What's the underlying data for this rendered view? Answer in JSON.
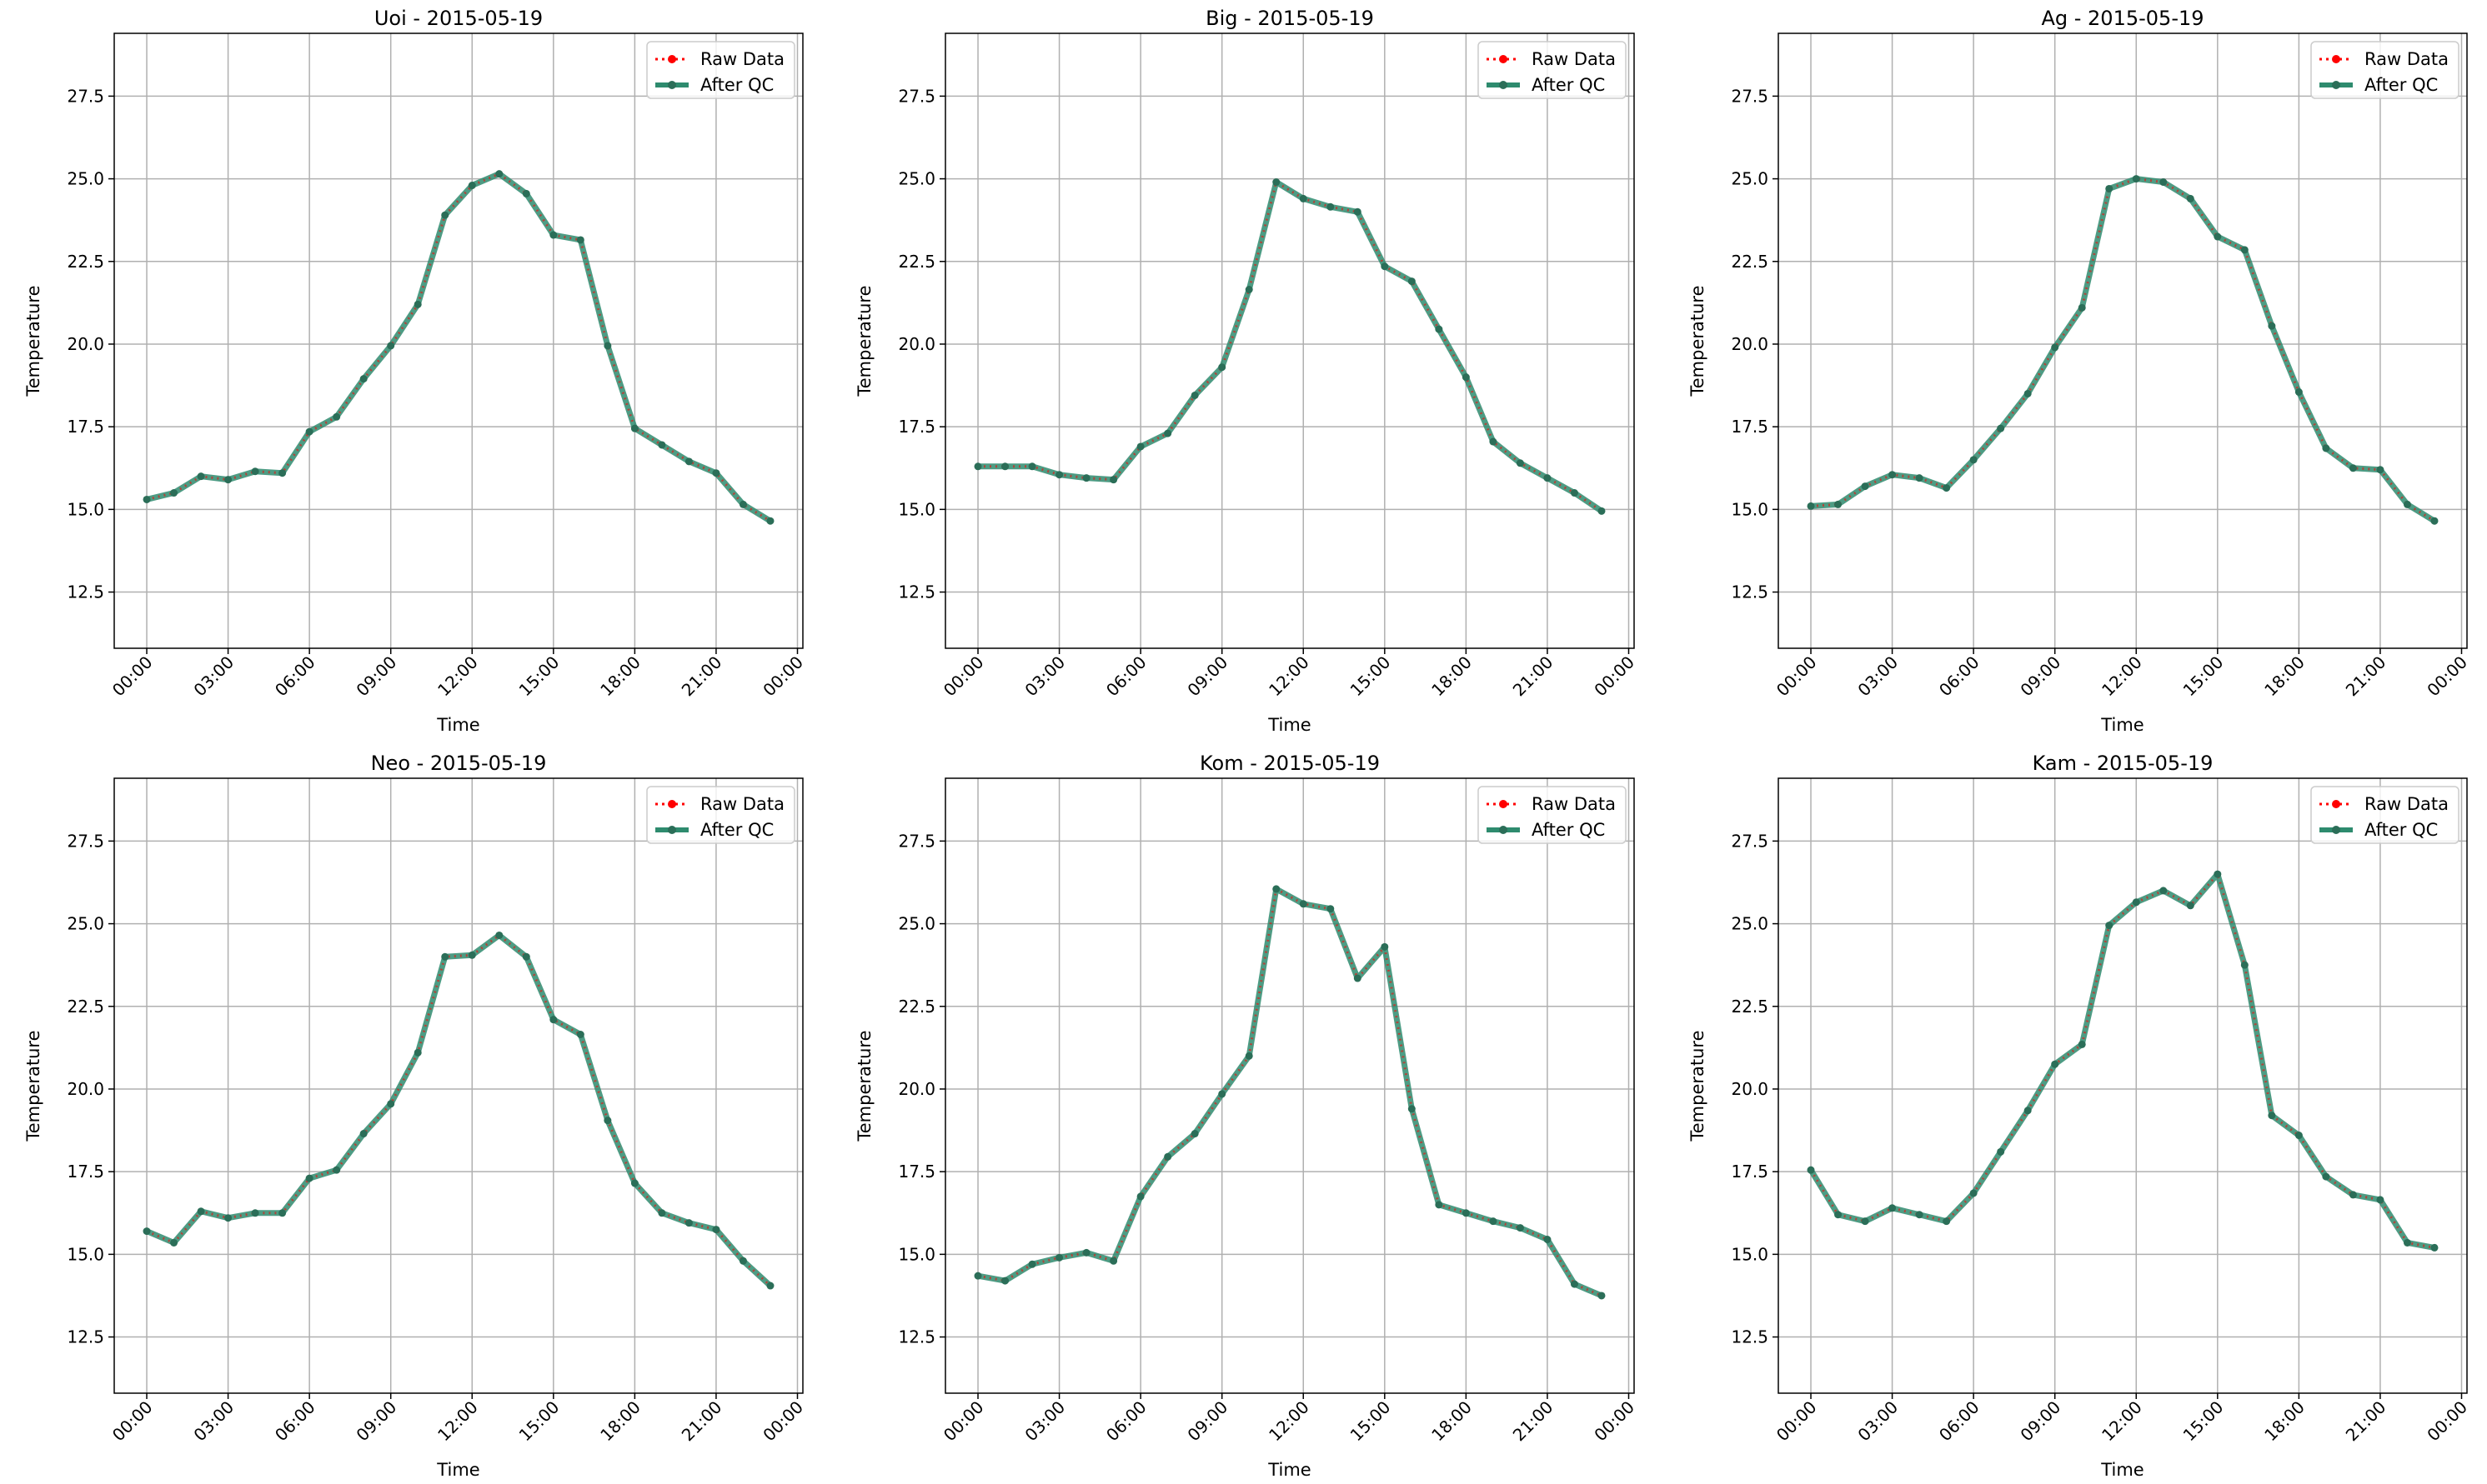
{
  "chart_data": [
    {
      "type": "line",
      "title": "Uoi - 2015-05-19",
      "xlabel": "Time",
      "ylabel": "Temperature",
      "ylim": [
        10.8,
        29.4
      ],
      "xlim_hours": [
        -1.2,
        24.2
      ],
      "xticks": [
        "00:00",
        "03:00",
        "06:00",
        "09:00",
        "12:00",
        "15:00",
        "18:00",
        "21:00",
        "00:00"
      ],
      "yticks": [
        "12.5",
        "15.0",
        "17.5",
        "20.0",
        "22.5",
        "25.0",
        "27.5"
      ],
      "grid": true,
      "legend": "top-right",
      "x_hours": [
        0,
        1,
        2,
        3,
        4,
        5,
        6,
        7,
        8,
        9,
        10,
        11,
        12,
        13,
        14,
        15,
        16,
        17,
        18,
        19,
        20,
        21,
        22,
        23
      ],
      "series": [
        {
          "name": "Raw Data",
          "values": [
            15.3,
            15.5,
            16.0,
            15.9,
            16.15,
            16.1,
            17.35,
            17.8,
            18.95,
            19.95,
            21.2,
            23.9,
            24.8,
            25.15,
            24.55,
            23.3,
            23.15,
            19.95,
            17.45,
            16.95,
            16.45,
            16.1,
            15.15,
            14.65
          ]
        },
        {
          "name": "After QC",
          "values": [
            15.3,
            15.5,
            16.0,
            15.9,
            16.15,
            16.1,
            17.35,
            17.8,
            18.95,
            19.95,
            21.2,
            23.9,
            24.8,
            25.15,
            24.55,
            23.3,
            23.15,
            19.95,
            17.45,
            16.95,
            16.45,
            16.1,
            15.15,
            14.65
          ]
        }
      ]
    },
    {
      "type": "line",
      "title": "Big - 2015-05-19",
      "xlabel": "Time",
      "ylabel": "Temperature",
      "ylim": [
        10.8,
        29.4
      ],
      "xlim_hours": [
        -1.2,
        24.2
      ],
      "xticks": [
        "00:00",
        "03:00",
        "06:00",
        "09:00",
        "12:00",
        "15:00",
        "18:00",
        "21:00",
        "00:00"
      ],
      "yticks": [
        "12.5",
        "15.0",
        "17.5",
        "20.0",
        "22.5",
        "25.0",
        "27.5"
      ],
      "grid": true,
      "legend": "top-right",
      "x_hours": [
        0,
        1,
        2,
        3,
        4,
        5,
        6,
        7,
        8,
        9,
        10,
        11,
        12,
        13,
        14,
        15,
        16,
        17,
        18,
        19,
        20,
        21,
        22,
        23
      ],
      "series": [
        {
          "name": "Raw Data",
          "values": [
            16.3,
            16.3,
            16.3,
            16.05,
            15.95,
            15.9,
            16.9,
            17.3,
            18.45,
            19.3,
            21.65,
            24.9,
            24.4,
            24.15,
            24.0,
            22.35,
            21.9,
            20.45,
            19.0,
            17.05,
            16.4,
            15.95,
            15.5,
            14.95
          ]
        },
        {
          "name": "After QC",
          "values": [
            16.3,
            16.3,
            16.3,
            16.05,
            15.95,
            15.9,
            16.9,
            17.3,
            18.45,
            19.3,
            21.65,
            24.9,
            24.4,
            24.15,
            24.0,
            22.35,
            21.9,
            20.45,
            19.0,
            17.05,
            16.4,
            15.95,
            15.5,
            14.95
          ]
        }
      ]
    },
    {
      "type": "line",
      "title": "Ag - 2015-05-19",
      "xlabel": "Time",
      "ylabel": "Temperature",
      "ylim": [
        10.8,
        29.4
      ],
      "xlim_hours": [
        -1.2,
        24.2
      ],
      "xticks": [
        "00:00",
        "03:00",
        "06:00",
        "09:00",
        "12:00",
        "15:00",
        "18:00",
        "21:00",
        "00:00"
      ],
      "yticks": [
        "12.5",
        "15.0",
        "17.5",
        "20.0",
        "22.5",
        "25.0",
        "27.5"
      ],
      "grid": true,
      "legend": "top-right",
      "x_hours": [
        0,
        1,
        2,
        3,
        4,
        5,
        6,
        7,
        8,
        9,
        10,
        11,
        12,
        13,
        14,
        15,
        16,
        17,
        18,
        19,
        20,
        21,
        22,
        23
      ],
      "series": [
        {
          "name": "Raw Data",
          "values": [
            15.1,
            15.15,
            15.7,
            16.05,
            15.95,
            15.65,
            16.5,
            17.45,
            18.5,
            19.9,
            21.1,
            24.7,
            25.0,
            24.9,
            24.4,
            23.25,
            22.85,
            20.55,
            18.55,
            16.85,
            16.25,
            16.2,
            15.15,
            14.65
          ]
        },
        {
          "name": "After QC",
          "values": [
            15.1,
            15.15,
            15.7,
            16.05,
            15.95,
            15.65,
            16.5,
            17.45,
            18.5,
            19.9,
            21.1,
            24.7,
            25.0,
            24.9,
            24.4,
            23.25,
            22.85,
            20.55,
            18.55,
            16.85,
            16.25,
            16.2,
            15.15,
            14.65
          ]
        }
      ]
    },
    {
      "type": "line",
      "title": "Neo - 2015-05-19",
      "xlabel": "Time",
      "ylabel": "Temperature",
      "ylim": [
        10.8,
        29.4
      ],
      "xlim_hours": [
        -1.2,
        24.2
      ],
      "xticks": [
        "00:00",
        "03:00",
        "06:00",
        "09:00",
        "12:00",
        "15:00",
        "18:00",
        "21:00",
        "00:00"
      ],
      "yticks": [
        "12.5",
        "15.0",
        "17.5",
        "20.0",
        "22.5",
        "25.0",
        "27.5"
      ],
      "grid": true,
      "legend": "top-right",
      "x_hours": [
        0,
        1,
        2,
        3,
        4,
        5,
        6,
        7,
        8,
        9,
        10,
        11,
        12,
        13,
        14,
        15,
        16,
        17,
        18,
        19,
        20,
        21,
        22,
        23
      ],
      "series": [
        {
          "name": "Raw Data",
          "values": [
            15.7,
            15.35,
            16.3,
            16.1,
            16.25,
            16.25,
            17.3,
            17.55,
            18.65,
            19.55,
            21.1,
            24.0,
            24.05,
            24.65,
            24.0,
            22.1,
            21.65,
            19.05,
            17.15,
            16.25,
            15.95,
            15.75,
            14.8,
            14.05
          ]
        },
        {
          "name": "After QC",
          "values": [
            15.7,
            15.35,
            16.3,
            16.1,
            16.25,
            16.25,
            17.3,
            17.55,
            18.65,
            19.55,
            21.1,
            24.0,
            24.05,
            24.65,
            24.0,
            22.1,
            21.65,
            19.05,
            17.15,
            16.25,
            15.95,
            15.75,
            14.8,
            14.05
          ]
        }
      ]
    },
    {
      "type": "line",
      "title": "Kom - 2015-05-19",
      "xlabel": "Time",
      "ylabel": "Temperature",
      "ylim": [
        10.8,
        29.4
      ],
      "xlim_hours": [
        -1.2,
        24.2
      ],
      "xticks": [
        "00:00",
        "03:00",
        "06:00",
        "09:00",
        "12:00",
        "15:00",
        "18:00",
        "21:00",
        "00:00"
      ],
      "yticks": [
        "12.5",
        "15.0",
        "17.5",
        "20.0",
        "22.5",
        "25.0",
        "27.5"
      ],
      "grid": true,
      "legend": "top-right",
      "x_hours": [
        0,
        1,
        2,
        3,
        4,
        5,
        6,
        7,
        8,
        9,
        10,
        11,
        12,
        13,
        14,
        15,
        16,
        17,
        18,
        19,
        20,
        21,
        22,
        23
      ],
      "series": [
        {
          "name": "Raw Data",
          "values": [
            14.35,
            14.2,
            14.7,
            14.9,
            15.05,
            14.8,
            16.75,
            17.95,
            18.65,
            19.85,
            21.0,
            26.05,
            25.6,
            25.45,
            23.35,
            24.3,
            19.4,
            16.5,
            16.25,
            16.0,
            15.8,
            15.45,
            14.1,
            13.75
          ]
        },
        {
          "name": "After QC",
          "values": [
            14.35,
            14.2,
            14.7,
            14.9,
            15.05,
            14.8,
            16.75,
            17.95,
            18.65,
            19.85,
            21.0,
            26.05,
            25.6,
            25.45,
            23.35,
            24.3,
            19.4,
            16.5,
            16.25,
            16.0,
            15.8,
            15.45,
            14.1,
            13.75
          ]
        }
      ]
    },
    {
      "type": "line",
      "title": "Kam - 2015-05-19",
      "xlabel": "Time",
      "ylabel": "Temperature",
      "ylim": [
        10.8,
        29.4
      ],
      "xlim_hours": [
        -1.2,
        24.2
      ],
      "xticks": [
        "00:00",
        "03:00",
        "06:00",
        "09:00",
        "12:00",
        "15:00",
        "18:00",
        "21:00",
        "00:00"
      ],
      "yticks": [
        "12.5",
        "15.0",
        "17.5",
        "20.0",
        "22.5",
        "25.0",
        "27.5"
      ],
      "grid": true,
      "legend": "top-right",
      "x_hours": [
        0,
        1,
        2,
        3,
        4,
        5,
        6,
        7,
        8,
        9,
        10,
        11,
        12,
        13,
        14,
        15,
        16,
        17,
        18,
        19,
        20,
        21,
        22,
        23
      ],
      "series": [
        {
          "name": "Raw Data",
          "values": [
            17.55,
            16.2,
            16.0,
            16.4,
            16.2,
            16.0,
            16.85,
            18.1,
            19.35,
            20.75,
            21.35,
            24.95,
            25.65,
            26.0,
            25.55,
            26.5,
            23.75,
            19.2,
            18.6,
            17.35,
            16.8,
            16.65,
            15.35,
            15.2
          ]
        },
        {
          "name": "After QC",
          "values": [
            17.55,
            16.2,
            16.0,
            16.4,
            16.2,
            16.0,
            16.85,
            18.1,
            19.35,
            20.75,
            21.35,
            24.95,
            25.65,
            26.0,
            25.55,
            26.5,
            23.75,
            19.2,
            18.6,
            17.35,
            16.8,
            16.65,
            15.35,
            15.2
          ]
        }
      ]
    }
  ],
  "colors": {
    "raw": "#ff0000",
    "qc": "#2e8b6e"
  }
}
